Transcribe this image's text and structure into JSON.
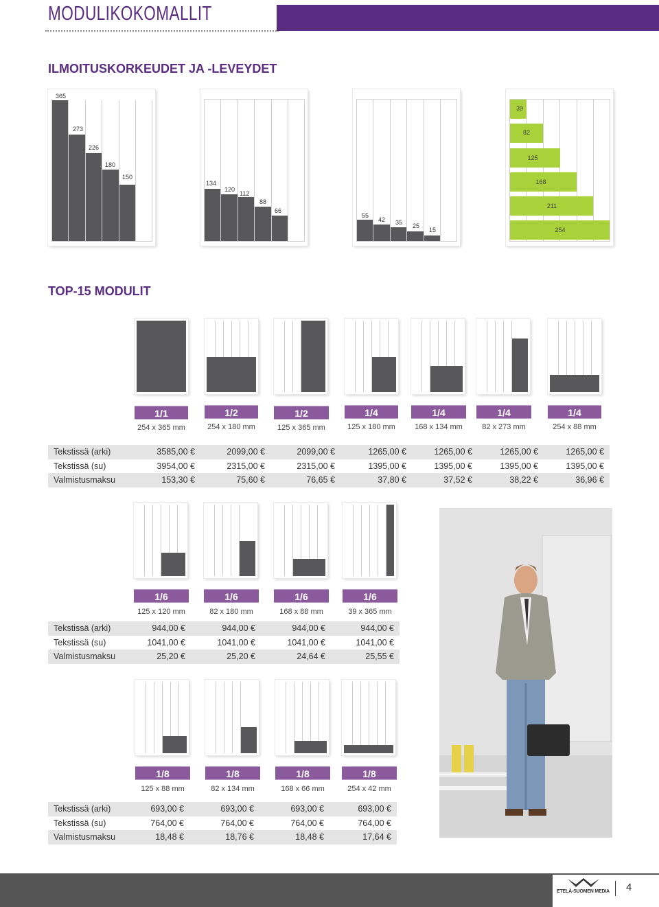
{
  "header": {
    "title": "MODULIKOKOMALLIT",
    "accent": "#5a2d82"
  },
  "section1": {
    "title": "ILMOITUSKORKEUDET JA -LEVEYDET",
    "panel1": [
      "365",
      "273",
      "226",
      "180",
      "150"
    ],
    "panel2": [
      "134",
      "120",
      "112",
      "88",
      "66"
    ],
    "panel3": [
      "55",
      "42",
      "35",
      "25",
      "15"
    ],
    "panel4": [
      "39",
      "82",
      "125",
      "168",
      "211",
      "254"
    ],
    "dark_color": "#58585a",
    "green_color": "#a8d13a"
  },
  "section2": {
    "title": "TOP-15 MODULIT"
  },
  "row1": {
    "modules": [
      {
        "size": "1/1",
        "dims": "254 x 365 mm"
      },
      {
        "size": "1/2",
        "dims": "254 x 180 mm"
      },
      {
        "size": "1/2",
        "dims": "125 x 365 mm"
      },
      {
        "size": "1/4",
        "dims": "125 x 180 mm"
      },
      {
        "size": "1/4",
        "dims": "168 x 134 mm"
      },
      {
        "size": "1/4",
        "dims": "82 x 273 mm"
      },
      {
        "size": "1/4",
        "dims": "254 x 88 mm"
      }
    ],
    "rows": [
      {
        "label": "Tekstissä (arki)",
        "values": [
          "3585,00 €",
          "2099,00 €",
          "2099,00 €",
          "1265,00 €",
          "1265,00 €",
          "1265,00 €",
          "1265,00 €"
        ]
      },
      {
        "label": "Tekstissä (su)",
        "values": [
          "3954,00 €",
          "2315,00 €",
          "2315,00 €",
          "1395,00 €",
          "1395,00 €",
          "1395,00 €",
          "1395,00 €"
        ]
      },
      {
        "label": "Valmistusmaksu",
        "values": [
          "153,30 €",
          "75,60 €",
          "76,65 €",
          "37,80 €",
          "37,52 €",
          "38,22 €",
          "36,96 €"
        ]
      }
    ]
  },
  "row2": {
    "modules": [
      {
        "size": "1/6",
        "dims": "125 x 120 mm"
      },
      {
        "size": "1/6",
        "dims": "82 x 180 mm"
      },
      {
        "size": "1/6",
        "dims": "168 x 88 mm"
      },
      {
        "size": "1/6",
        "dims": "39 x 365 mm"
      }
    ],
    "rows": [
      {
        "label": "Tekstissä (arki)",
        "values": [
          "944,00 €",
          "944,00 €",
          "944,00 €",
          "944,00 €"
        ]
      },
      {
        "label": "Tekstissä (su)",
        "values": [
          "1041,00 €",
          "1041,00 €",
          "1041,00 €",
          "1041,00 €"
        ]
      },
      {
        "label": "Valmistusmaksu",
        "values": [
          "25,20 €",
          "25,20 €",
          "24,64 €",
          "25,55 €"
        ]
      }
    ]
  },
  "row3": {
    "modules": [
      {
        "size": "1/8",
        "dims": "125 x 88 mm"
      },
      {
        "size": "1/8",
        "dims": "82 x 134 mm"
      },
      {
        "size": "1/8",
        "dims": "168 x 66 mm"
      },
      {
        "size": "1/8",
        "dims": "254 x 42 mm"
      }
    ],
    "rows": [
      {
        "label": "Tekstissä (arki)",
        "values": [
          "693,00 €",
          "693,00 €",
          "693,00 €",
          "693,00 €"
        ]
      },
      {
        "label": "Tekstissä (su)",
        "values": [
          "764,00 €",
          "764,00 €",
          "764,00 €",
          "764,00 €"
        ]
      },
      {
        "label": "Valmistusmaksu",
        "values": [
          "18,48 €",
          "18,76 €",
          "18,48 €",
          "17,64 €"
        ]
      }
    ]
  },
  "footer": {
    "page_number": "4",
    "logo_text": "ETELÄ-SUOMEN MEDIA"
  }
}
